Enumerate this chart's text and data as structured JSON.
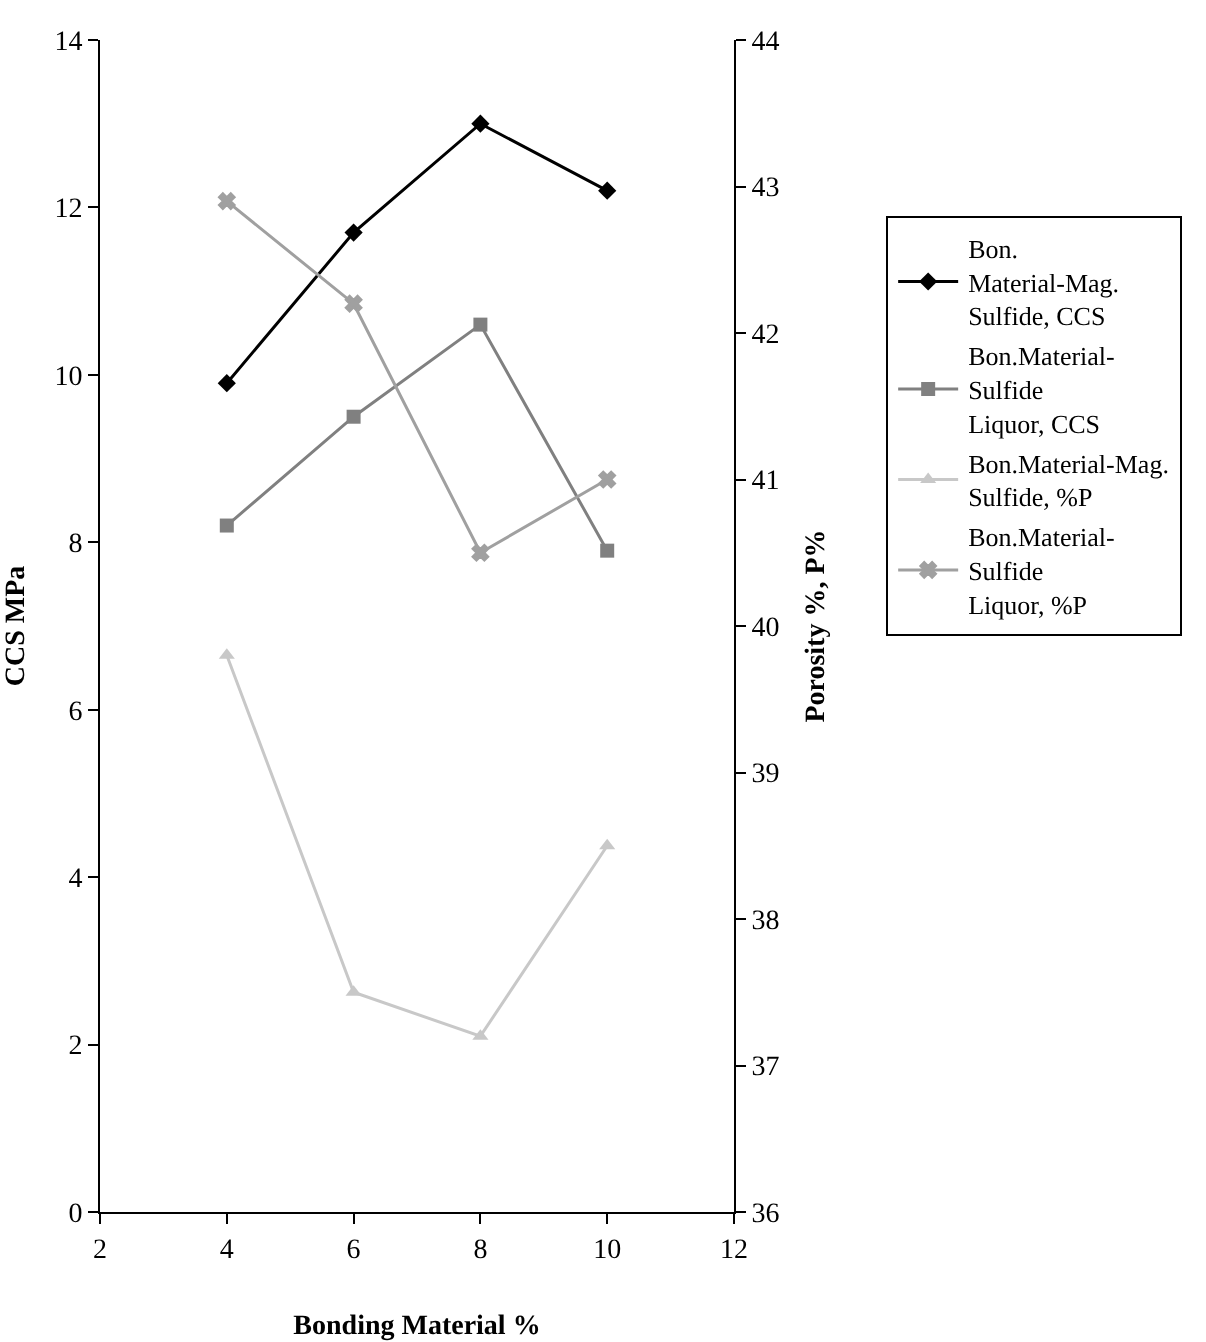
{
  "chart_data": {
    "type": "line",
    "xlabel": "Bonding Material %",
    "ylabel": "CCS MPa",
    "y2label": "Porosity %, P%",
    "x": [
      4,
      6,
      8,
      10
    ],
    "xlim": [
      2,
      12
    ],
    "xticks": [
      2,
      4,
      6,
      8,
      10,
      12
    ],
    "ylim": [
      0,
      14
    ],
    "yticks": [
      0,
      2,
      4,
      6,
      8,
      10,
      12,
      14
    ],
    "y2lim": [
      36,
      44
    ],
    "y2ticks": [
      36,
      37,
      38,
      39,
      40,
      41,
      42,
      43,
      44
    ],
    "grid": false,
    "legend": "right",
    "line_style": "solid",
    "series": [
      {
        "name": "Bon. Material-Mag. Sulfide, CCS",
        "color": "#000000",
        "marker": "diamond",
        "values": [
          9.9,
          11.7,
          13.0,
          12.2
        ]
      },
      {
        "name": "Bon.Material-Sulfide Liquor, CCS",
        "color": "#808080",
        "marker": "square",
        "values": [
          8.2,
          9.5,
          10.6,
          7.9
        ]
      },
      {
        "name": "Bon.Material-Mag. Sulfide, %P",
        "color": "#c8c8c8",
        "marker": "triangle",
        "axis": "y2",
        "values": [
          39.8,
          37.5,
          37.2,
          38.5
        ]
      },
      {
        "name": "Bon.Material-Sulfide Liquor, %P",
        "color": "#a0a0a0",
        "marker": "cross",
        "axis": "y2",
        "values": [
          42.9,
          42.2,
          40.5,
          41.0
        ]
      }
    ]
  }
}
